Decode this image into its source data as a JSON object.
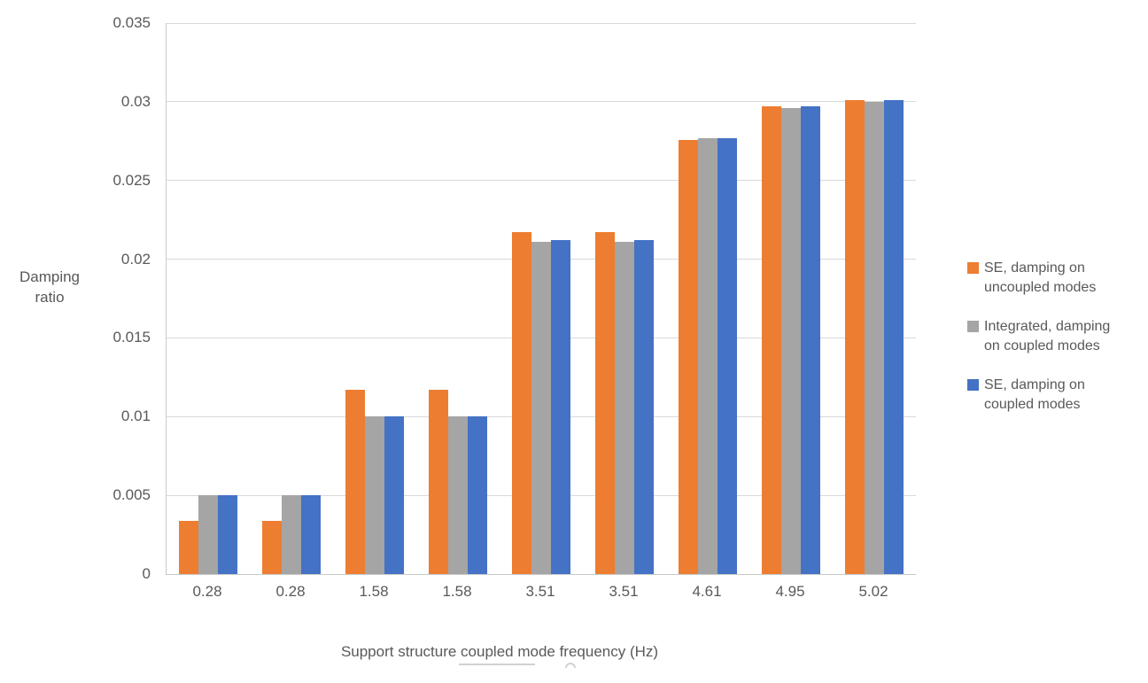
{
  "chart_data": {
    "type": "bar",
    "title": "",
    "categories": [
      "0.28",
      "0.28",
      "1.58",
      "1.58",
      "3.51",
      "3.51",
      "4.61",
      "4.95",
      "5.02"
    ],
    "series": [
      {
        "name": "SE, damping on\nuncoupled modes",
        "color": "#ED7D31",
        "values": [
          0.0034,
          0.0034,
          0.0117,
          0.0117,
          0.0217,
          0.0217,
          0.0276,
          0.0297,
          0.0301
        ]
      },
      {
        "name": "Integrated, damping\non coupled modes",
        "color": "#A5A5A5",
        "values": [
          0.005,
          0.005,
          0.01,
          0.01,
          0.0211,
          0.0211,
          0.0277,
          0.0296,
          0.03
        ]
      },
      {
        "name": "SE, damping on\ncoupled modes",
        "color": "#4472C4",
        "values": [
          0.005,
          0.005,
          0.01,
          0.01,
          0.0212,
          0.0212,
          0.0277,
          0.0297,
          0.0301
        ]
      }
    ],
    "xlabel": "Support structure coupled mode frequency (Hz)",
    "ylabel": "Damping ratio",
    "ylim": [
      0,
      0.035
    ],
    "yticks": [
      0,
      0.005,
      0.01,
      0.015,
      0.02,
      0.025,
      0.03,
      0.035
    ],
    "ytick_labels": [
      "0",
      "0.005",
      "0.01",
      "0.015",
      "0.02",
      "0.025",
      "0.03",
      "0.035"
    ],
    "grid": true,
    "legend_position": "right"
  },
  "colors": {
    "text": "#595959",
    "gridline": "#D9D9D9",
    "axis_line": "#C9C9C9",
    "background": "#FFFFFF"
  }
}
